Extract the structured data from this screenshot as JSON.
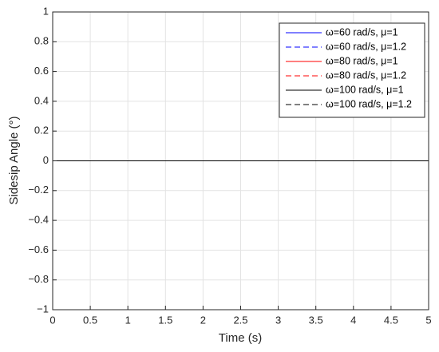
{
  "chart_data": {
    "type": "line",
    "xlabel": "Time (s)",
    "ylabel": "Sidesip Angle (°)",
    "x": [
      0,
      5
    ],
    "series": [
      {
        "name": "ω=60 rad/s, μ=1",
        "color": "#0000ff",
        "dash": "solid",
        "values": [
          0,
          0
        ]
      },
      {
        "name": "ω=60 rad/s, μ=1.2",
        "color": "#0000ff",
        "dash": "dashed",
        "values": [
          0,
          0
        ]
      },
      {
        "name": "ω=80 rad/s, μ=1",
        "color": "#ff0000",
        "dash": "solid",
        "values": [
          0,
          0
        ]
      },
      {
        "name": "ω=80 rad/s, μ=1.2",
        "color": "#ff0000",
        "dash": "dashed",
        "values": [
          0,
          0
        ]
      },
      {
        "name": "ω=100 rad/s, μ=1",
        "color": "#000000",
        "dash": "solid",
        "values": [
          0,
          0
        ]
      },
      {
        "name": "ω=100 rad/s, μ=1.2",
        "color": "#000000",
        "dash": "dashed",
        "values": [
          0,
          0
        ]
      }
    ],
    "xlim": [
      0,
      5
    ],
    "xticks": [
      0,
      0.5,
      1,
      1.5,
      2,
      2.5,
      3,
      3.5,
      4,
      4.5,
      5
    ],
    "ylim": [
      -1,
      1
    ],
    "yticks": [
      {
        "value": -1,
        "label": "−1"
      },
      {
        "value": -0.8,
        "label": "−0.8"
      },
      {
        "value": -0.6,
        "label": "−0.6"
      },
      {
        "value": -0.4,
        "label": "−0.4"
      },
      {
        "value": -0.2,
        "label": "−0.2"
      },
      0,
      0.2,
      0.4,
      0.6,
      0.8,
      1
    ],
    "grid": true,
    "legend_position": "northeast"
  }
}
